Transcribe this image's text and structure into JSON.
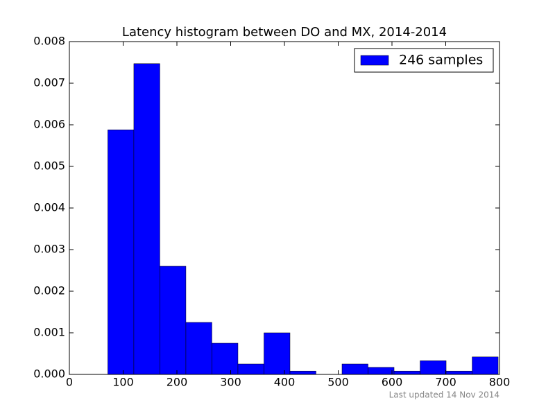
{
  "chart_data": {
    "type": "histogram",
    "title": "Latency histogram between DO and MX, 2014-2014",
    "bins": [
      71.5,
      119.9,
      168.3,
      216.7,
      265.1,
      313.5,
      361.9,
      410.3,
      458.7,
      507.1,
      555.5,
      603.9,
      652.3,
      700.7,
      749.1,
      797.5
    ],
    "series": [
      {
        "name": "246 samples",
        "color": "#0000ff",
        "values": [
          0.00588,
          0.00747,
          0.0026,
          0.00125,
          0.00075,
          0.00025,
          0.001,
          8e-05,
          0,
          0.00025,
          0.00017,
          8e-05,
          0.00033,
          8e-05,
          0.00042
        ]
      }
    ],
    "xlim": [
      0,
      800
    ],
    "xticks": [
      0,
      100,
      200,
      300,
      400,
      500,
      600,
      700,
      800
    ],
    "ylim": [
      0,
      0.008
    ],
    "yticks": [
      {
        "value": 0,
        "label": "0.000"
      },
      {
        "value": 0.001,
        "label": "0.001"
      },
      {
        "value": 0.002,
        "label": "0.002"
      },
      {
        "value": 0.003,
        "label": "0.003"
      },
      {
        "value": 0.004,
        "label": "0.004"
      },
      {
        "value": 0.005,
        "label": "0.005"
      },
      {
        "value": 0.006,
        "label": "0.006"
      },
      {
        "value": 0.007,
        "label": "0.007"
      },
      {
        "value": 0.008,
        "label": "0.008"
      }
    ],
    "legend": "upper right",
    "footnote": "Last updated 14 Nov 2014"
  }
}
